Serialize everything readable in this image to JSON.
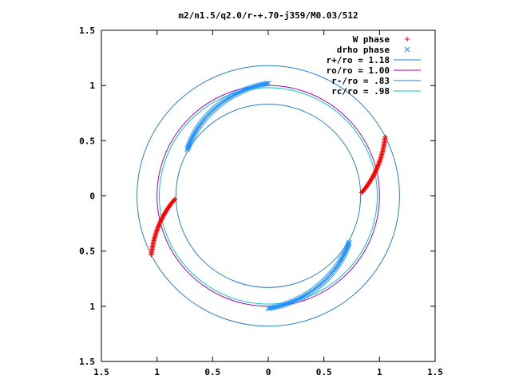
{
  "chart_data": {
    "type": "scatter",
    "title": "m2/n1.5/q2.0/r-+.70-j359/M0.03/512",
    "xlabel": "",
    "ylabel": "",
    "xlim": [
      -1.5,
      1.5
    ],
    "ylim": [
      -1.5,
      1.5
    ],
    "x_ticks": [
      -1.5,
      -1,
      -0.5,
      0,
      0.5,
      1,
      1.5
    ],
    "y_ticks": [
      -1.5,
      -1,
      -0.5,
      0,
      0.5,
      1,
      1.5
    ],
    "x_tick_labels": [
      "1.5",
      "1",
      "0.5",
      "0",
      "0.5",
      "1",
      "1.5"
    ],
    "y_tick_labels": [
      "1.5",
      "1",
      "0.5",
      "0",
      "0.5",
      "1",
      "1.5"
    ],
    "grid": false,
    "legend_position": "top-right",
    "colors": {
      "w_phase": "#ff0000",
      "drho_phase": "#1e90ff",
      "r_plus": "#2a7fc9",
      "ro": "#b000b0",
      "r_minus": "#2a7fc9",
      "rc": "#00c8c8"
    },
    "series": [
      {
        "name": "W phase",
        "kind": "points",
        "marker": "plus",
        "arcs": [
          {
            "r_start": 0.84,
            "r_end": 1.18,
            "theta_start": 2,
            "theta_end": 27
          },
          {
            "r_start": 0.84,
            "r_end": 1.18,
            "theta_start": 182,
            "theta_end": 207
          }
        ],
        "points_per_arc": 60
      },
      {
        "name": "drho phase",
        "kind": "points",
        "marker": "cross",
        "arcs": [
          {
            "r_start": 0.84,
            "r_end": 1.02,
            "theta_start": 150,
            "theta_end": 90
          },
          {
            "r_start": 0.84,
            "r_end": 1.02,
            "theta_start": 330,
            "theta_end": 270
          }
        ],
        "points_per_arc": 75
      },
      {
        "name": "r+/ro = 1.18",
        "kind": "circle",
        "radius": 1.18
      },
      {
        "name": "ro/ro = 1.00",
        "kind": "circle",
        "radius": 1.0
      },
      {
        "name": "r-/ro = .83",
        "kind": "circle",
        "radius": 0.83
      },
      {
        "name": "rc/ro = .98",
        "kind": "circle",
        "radius": 0.98
      }
    ]
  }
}
